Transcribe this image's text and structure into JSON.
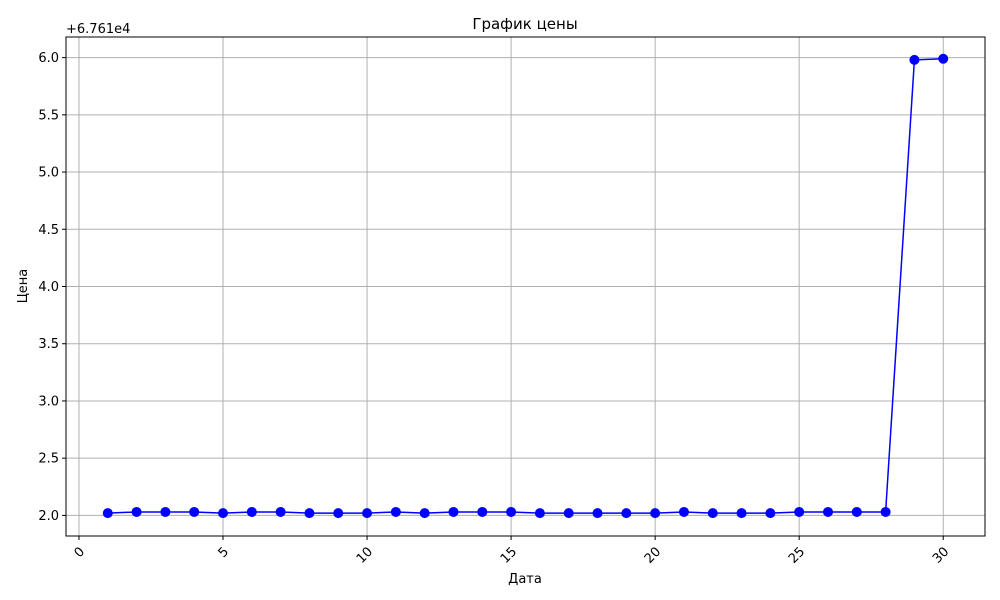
{
  "chart_data": {
    "type": "line",
    "title": "График цены",
    "xlabel": "Дата",
    "ylabel": "Цена",
    "y_offset_label": "+6.761e4",
    "x": [
      1,
      2,
      3,
      4,
      5,
      6,
      7,
      8,
      9,
      10,
      11,
      12,
      13,
      14,
      15,
      16,
      17,
      18,
      19,
      20,
      21,
      22,
      23,
      24,
      25,
      26,
      27,
      28,
      29,
      30
    ],
    "series": [
      {
        "color": "#0000ff",
        "marker": "circle",
        "values": [
          2.02,
          2.03,
          2.03,
          2.03,
          2.02,
          2.03,
          2.03,
          2.02,
          2.02,
          2.02,
          2.03,
          2.02,
          2.03,
          2.03,
          2.03,
          2.02,
          2.02,
          2.02,
          2.02,
          2.02,
          2.03,
          2.02,
          2.02,
          2.02,
          2.03,
          2.03,
          2.03,
          2.03,
          5.98,
          5.99
        ]
      }
    ],
    "xlim": [
      -0.45,
      31.45
    ],
    "ylim": [
      1.82,
      6.18
    ],
    "x_ticks": [
      0,
      5,
      10,
      15,
      20,
      25,
      30
    ],
    "x_tick_labels": [
      "0",
      "5",
      "10",
      "15",
      "20",
      "25",
      "30"
    ],
    "x_tick_rotation": 45,
    "y_ticks": [
      2.0,
      2.5,
      3.0,
      3.5,
      4.0,
      4.5,
      5.0,
      5.5,
      6.0
    ],
    "y_tick_labels": [
      "2.0",
      "2.5",
      "3.0",
      "3.5",
      "4.0",
      "4.5",
      "5.0",
      "5.5",
      "6.0"
    ],
    "grid": true,
    "grid_color": "#b0b0b0"
  }
}
